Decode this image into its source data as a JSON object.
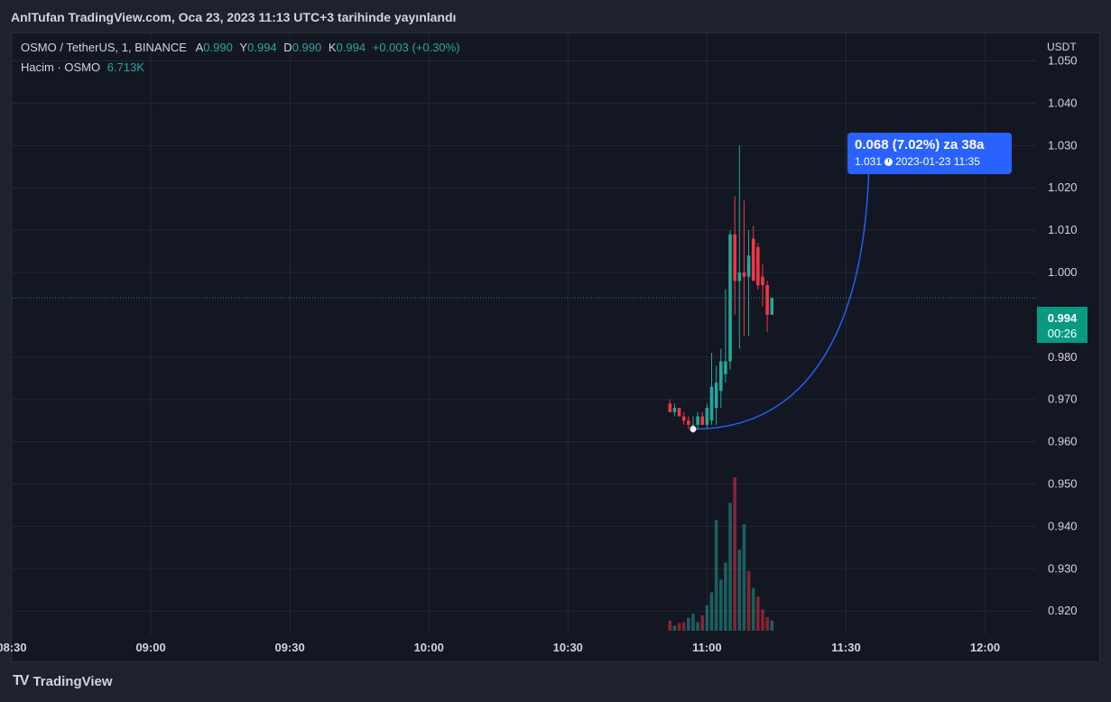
{
  "header": {
    "published": "AnlTufan TradingView.com, Oca 23, 2023 11:13 UTC+3 tarihinde yayınlandı"
  },
  "legend": {
    "symbol": "OSMO / TetherUS, 1, BINANCE",
    "o_label": "A",
    "o_value": "0.990",
    "h_label": "Y",
    "h_value": "0.994",
    "l_label": "D",
    "l_value": "0.990",
    "c_label": "K",
    "c_value": "0.994",
    "change": "+0.003 (+0.30%)",
    "volume_label": "Hacim · OSMO",
    "volume_value": "6.713K"
  },
  "price_scale": {
    "currency": "USDT",
    "last_price": "0.994",
    "countdown": "00:26"
  },
  "measure": {
    "line1": "0.068 (7.02%) za 38a",
    "price": "1.031",
    "datetime": "2023-01-23  11:35",
    "clock_icon": "clock-icon"
  },
  "branding": {
    "logo_mark": "TV",
    "logo_text": "TradingView",
    "icon": "tradingview-logo-icon"
  },
  "colors": {
    "up": "#26a69a",
    "down": "#f23645",
    "accent": "#2962ff",
    "price_line": "#089981"
  },
  "chart_data": {
    "type": "candlestick",
    "title": "OSMO / TetherUS, 1, BINANCE",
    "ylabel": "USDT",
    "ylim": [
      0.9145,
      1.0565
    ],
    "grid": true,
    "y_ticks": [
      0.92,
      0.93,
      0.94,
      0.95,
      0.96,
      0.97,
      0.98,
      1.0,
      1.01,
      1.02,
      1.03,
      1.04,
      1.05
    ],
    "x_ticks": [
      "08:30",
      "09:00",
      "09:30",
      "10:00",
      "10:30",
      "11:00",
      "11:30",
      "12:00"
    ],
    "x_tick_minutes": [
      510,
      540,
      570,
      600,
      630,
      660,
      690,
      720
    ],
    "x_range_minutes": [
      510,
      731
    ],
    "last_price": 0.994,
    "measure": {
      "from_time": "10:57",
      "from_price": 0.963,
      "to_time": "11:35",
      "to_price": 1.031
    },
    "series": [
      {
        "name": "price",
        "points": [
          {
            "t": "10:52",
            "o": 0.969,
            "h": 0.97,
            "l": 0.967,
            "c": 0.967
          },
          {
            "t": "10:53",
            "o": 0.967,
            "h": 0.969,
            "l": 0.966,
            "c": 0.968
          },
          {
            "t": "10:54",
            "o": 0.968,
            "h": 0.968,
            "l": 0.966,
            "c": 0.966
          },
          {
            "t": "10:55",
            "o": 0.966,
            "h": 0.967,
            "l": 0.964,
            "c": 0.965
          },
          {
            "t": "10:56",
            "o": 0.965,
            "h": 0.966,
            "l": 0.963,
            "c": 0.964
          },
          {
            "t": "10:57",
            "o": 0.964,
            "h": 0.966,
            "l": 0.962,
            "c": 0.964
          },
          {
            "t": "10:58",
            "o": 0.964,
            "h": 0.967,
            "l": 0.963,
            "c": 0.966
          },
          {
            "t": "10:59",
            "o": 0.966,
            "h": 0.967,
            "l": 0.964,
            "c": 0.964
          },
          {
            "t": "11:00",
            "o": 0.964,
            "h": 0.969,
            "l": 0.963,
            "c": 0.968
          },
          {
            "t": "11:01",
            "o": 0.965,
            "h": 0.981,
            "l": 0.964,
            "c": 0.973
          },
          {
            "t": "11:02",
            "o": 0.968,
            "h": 0.978,
            "l": 0.964,
            "c": 0.974
          },
          {
            "t": "11:03",
            "o": 0.972,
            "h": 0.982,
            "l": 0.968,
            "c": 0.979
          },
          {
            "t": "11:04",
            "o": 0.976,
            "h": 0.996,
            "l": 0.974,
            "c": 0.979
          },
          {
            "t": "11:05",
            "o": 0.979,
            "h": 1.01,
            "l": 0.977,
            "c": 1.009
          },
          {
            "t": "11:06",
            "o": 1.009,
            "h": 1.018,
            "l": 0.99,
            "c": 0.998
          },
          {
            "t": "11:07",
            "o": 0.998,
            "h": 1.03,
            "l": 0.982,
            "c": 1.0
          },
          {
            "t": "11:08",
            "o": 1.0,
            "h": 1.017,
            "l": 0.985,
            "c": 0.999
          },
          {
            "t": "11:09",
            "o": 0.999,
            "h": 1.01,
            "l": 0.985,
            "c": 1.004
          },
          {
            "t": "11:10",
            "o": 1.008,
            "h": 1.011,
            "l": 0.999,
            "c": 0.998
          },
          {
            "t": "11:11",
            "o": 1.006,
            "h": 1.007,
            "l": 0.996,
            "c": 0.997
          },
          {
            "t": "11:12",
            "o": 0.999,
            "h": 1.002,
            "l": 0.992,
            "c": 0.997
          },
          {
            "t": "11:13",
            "o": 0.997,
            "h": 0.998,
            "l": 0.986,
            "c": 0.99
          },
          {
            "t": "11:14",
            "o": 0.99,
            "h": 0.994,
            "l": 0.99,
            "c": 0.994
          }
        ],
        "volume": [
          1.2,
          0.6,
          0.9,
          1.0,
          1.5,
          2.0,
          1.0,
          1.8,
          3.0,
          4.5,
          13.0,
          6.0,
          8.0,
          15.0,
          18.0,
          9.5,
          12.5,
          7.0,
          5.0,
          4.0,
          2.5,
          1.6,
          1.2
        ],
        "volume_up": [
          false,
          true,
          false,
          false,
          true,
          true,
          true,
          false,
          true,
          true,
          true,
          true,
          true,
          true,
          false,
          true,
          true,
          false,
          true,
          false,
          false,
          false,
          true
        ]
      }
    ]
  }
}
